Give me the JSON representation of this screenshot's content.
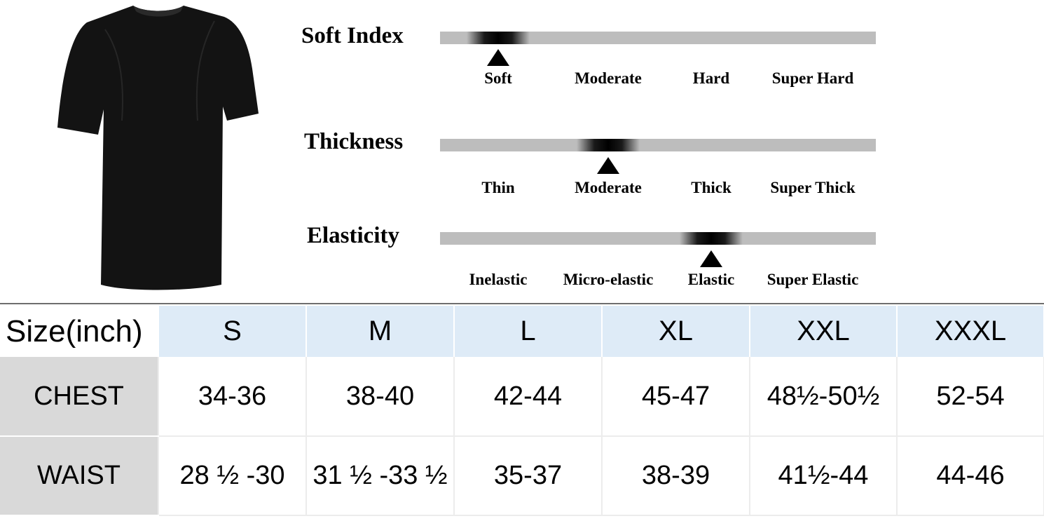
{
  "product": {
    "image_icon": "black-t-shirt-icon",
    "color": "#111111"
  },
  "scales": [
    {
      "title": "Soft Index",
      "options": [
        "Soft",
        "Moderate",
        "Hard",
        "Super Hard"
      ],
      "selected_index": 0
    },
    {
      "title": "Thickness",
      "options": [
        "Thin",
        "Moderate",
        "Thick",
        "Super Thick"
      ],
      "selected_index": 1
    },
    {
      "title": "Elasticity",
      "options": [
        "Inelastic",
        "Micro-elastic",
        "Elastic",
        "Super Elastic"
      ],
      "selected_index": 2
    }
  ],
  "size_table": {
    "header_label": "Size(inch)",
    "sizes": [
      "S",
      "M",
      "L",
      "XL",
      "XXL",
      "XXXL"
    ],
    "rows": [
      {
        "label": "CHEST",
        "values": [
          "34-36",
          "38-40",
          "42-44",
          "45-47",
          "48½-50½",
          "52-54"
        ]
      },
      {
        "label": "WAIST",
        "values": [
          "28 ½ -30",
          "31 ½ -33 ½",
          "35-37",
          "38-39",
          "41½-44",
          "44-46"
        ]
      }
    ]
  },
  "colors": {
    "bar": "#bdbdbd",
    "marker": "#000000",
    "size_header_bg": "#deebf7",
    "row_label_bg": "#d9d9d9"
  }
}
